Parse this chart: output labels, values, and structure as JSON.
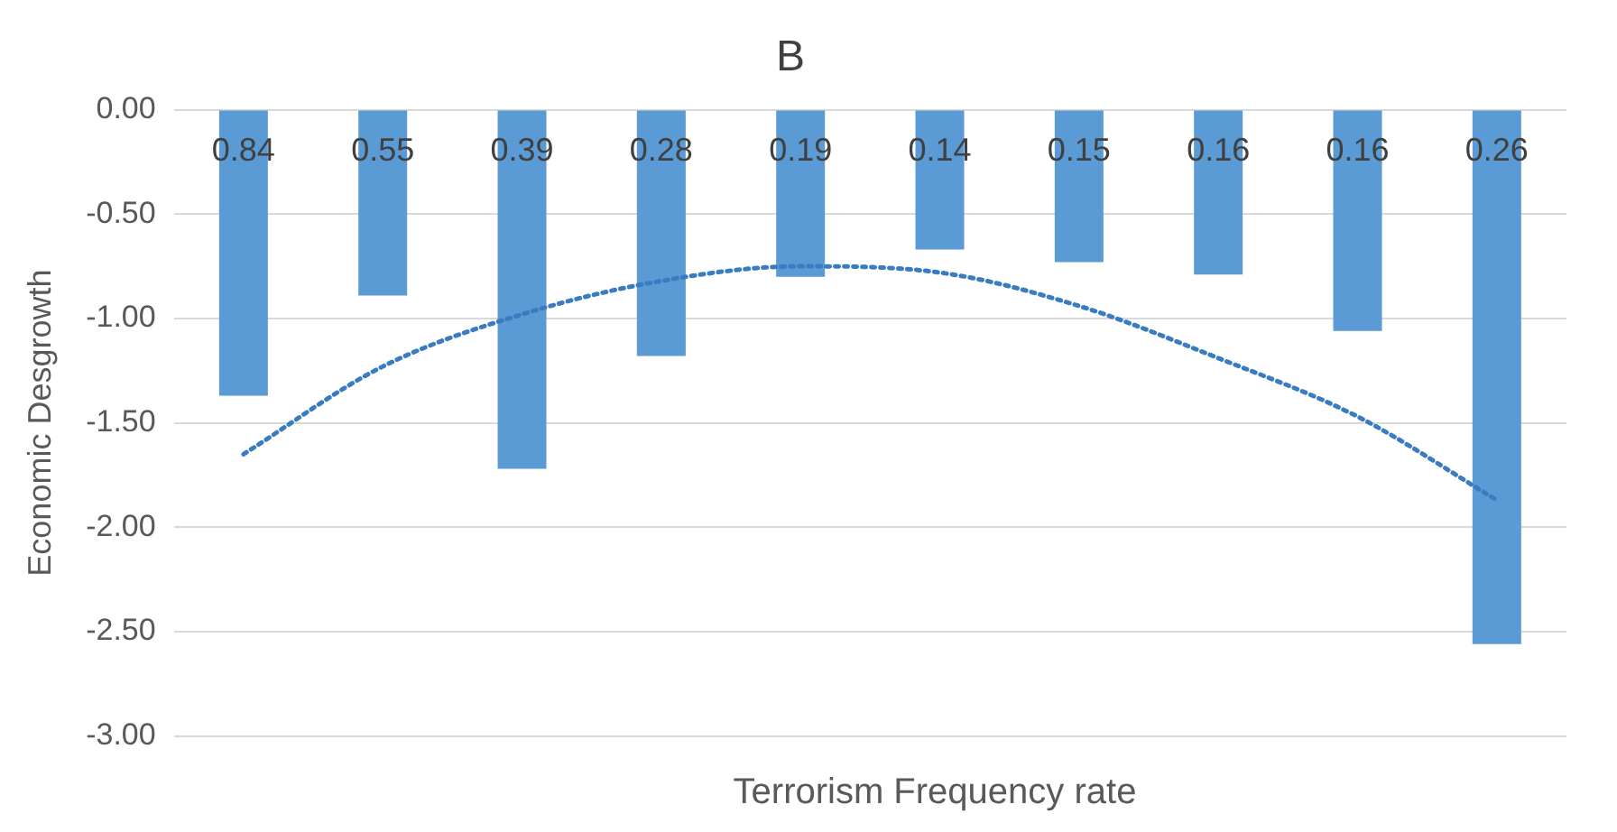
{
  "chart_data": {
    "type": "bar",
    "title": "B",
    "xlabel": "Terrorism Frequency rate",
    "ylabel": "Economic Desgrowth",
    "categories": [
      "0.84",
      "0.55",
      "0.39",
      "0.28",
      "0.19",
      "0.14",
      "0.15",
      "0.16",
      "0.16",
      "0.26"
    ],
    "series": [
      {
        "color": "#5b9bd5",
        "values": [
          -1.37,
          -0.89,
          -1.72,
          -1.18,
          -0.8,
          -0.67,
          -0.73,
          -0.79,
          -1.06,
          -2.56
        ]
      },
      {
        "type": "line",
        "color": "#3a7cc0",
        "line_style": "dotted",
        "marker": "none",
        "values": [
          -1.65,
          -1.23,
          -0.98,
          -0.82,
          -0.75,
          -0.78,
          -0.94,
          -1.19,
          -1.47,
          -1.87
        ]
      }
    ],
    "ylim": [
      -3,
      0
    ],
    "yticks": [
      {
        "value": 0,
        "label": "0.00"
      },
      {
        "value": -0.5,
        "label": "-0.50"
      },
      {
        "value": -1,
        "label": "-1.00"
      },
      {
        "value": -1.5,
        "label": "-1.50"
      },
      {
        "value": -2,
        "label": "-2.00"
      },
      {
        "value": -2.5,
        "label": "-2.50"
      },
      {
        "value": -3,
        "label": "-3.00"
      }
    ],
    "grid": "y",
    "legend": false
  }
}
